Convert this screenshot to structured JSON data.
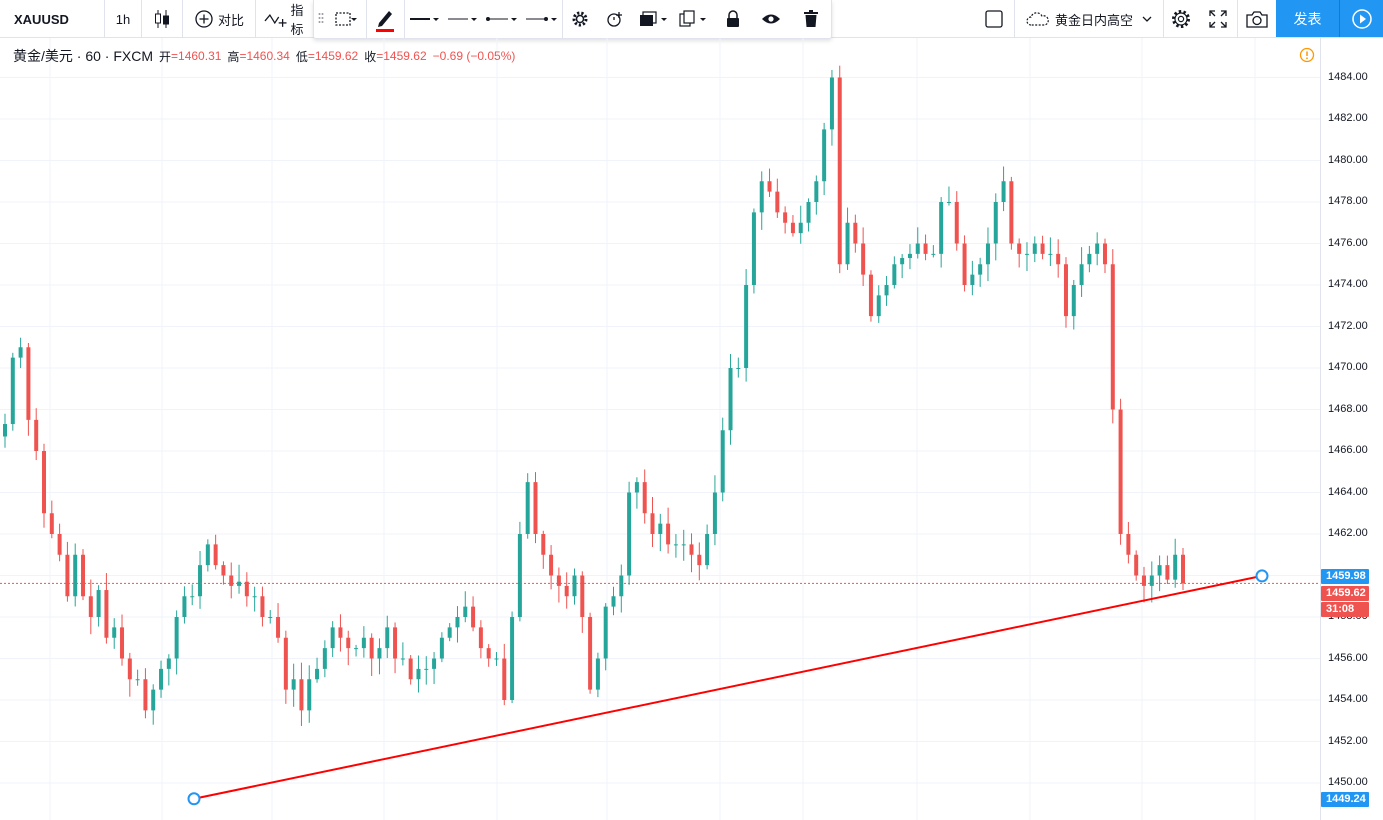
{
  "topbar": {
    "symbol": "XAUUSD",
    "interval": "1h",
    "compare_label": "对比",
    "indicators_label": "指标",
    "layout_name": "黄金日内高空",
    "publish_label": "发表"
  },
  "legend": {
    "title": "黄金/美元 · 60 · FXCM",
    "open_label": "开",
    "open": "=1460.31",
    "high_label": "高",
    "high": "=1460.34",
    "low_label": "低",
    "low": "=1459.62",
    "close_label": "收",
    "close": "=1459.62",
    "change": "−0.69 (−0.05%)"
  },
  "price_axis": {
    "ticks": [
      "1484.00",
      "1482.00",
      "1480.00",
      "1478.00",
      "1476.00",
      "1474.00",
      "1472.00",
      "1470.00",
      "1468.00",
      "1466.00",
      "1464.00",
      "1462.00",
      "1458.00",
      "1456.00",
      "1454.00",
      "1452.00",
      "1450.00"
    ]
  },
  "price_tags": {
    "trend_end": "1459.98",
    "last_price": "1459.62",
    "countdown": "31:08",
    "trend_start": "1449.24"
  },
  "colors": {
    "up": "#26a69a",
    "down": "#ef5350",
    "trend_line": "#ff0000",
    "accent": "#2196f3"
  },
  "chart_data": {
    "type": "candlestick",
    "symbol": "XAUUSD",
    "interval": "60",
    "source": "FXCM",
    "ylim": [
      1449,
      1485
    ],
    "last_price": 1459.62,
    "trend_line": {
      "start": 1449.24,
      "end": 1459.98
    },
    "closes": [
      1467.3,
      1470.5,
      1471,
      1467.5,
      1466,
      1463,
      1462,
      1461,
      1459,
      1461,
      1459,
      1458,
      1459.3,
      1457,
      1457.5,
      1456,
      1455,
      1455,
      1453.5,
      1454.5,
      1455.5,
      1456,
      1458,
      1459,
      1459,
      1460.5,
      1461.5,
      1460.5,
      1460,
      1459.5,
      1459.7,
      1459,
      1459,
      1458,
      1458,
      1457,
      1454.5,
      1455,
      1453.5,
      1455,
      1455.5,
      1456.5,
      1457.5,
      1457,
      1456.5,
      1456.5,
      1457,
      1456,
      1456.5,
      1457.5,
      1456,
      1456,
      1455,
      1455.5,
      1455.5,
      1456,
      1457,
      1457.5,
      1458,
      1458.5,
      1457.5,
      1456.5,
      1456,
      1456,
      1454,
      1458,
      1462,
      1464.5,
      1462,
      1461,
      1460,
      1459.5,
      1459,
      1460,
      1458,
      1454.5,
      1456,
      1458.5,
      1459,
      1460,
      1464,
      1464.5,
      1463,
      1462,
      1462.5,
      1461.5,
      1461.5,
      1461.5,
      1461,
      1460.5,
      1462,
      1464,
      1467,
      1470,
      1470,
      1474,
      1477.5,
      1479,
      1478.5,
      1477.5,
      1477,
      1476.5,
      1477,
      1478,
      1479,
      1481.5,
      1484,
      1475,
      1477,
      1476,
      1474.5,
      1472.5,
      1473.5,
      1474,
      1475,
      1475.3,
      1475.5,
      1476,
      1475.5,
      1475.5,
      1478,
      1478,
      1476,
      1474,
      1474.5,
      1475,
      1476,
      1478,
      1479,
      1476,
      1475.5,
      1475.5,
      1476,
      1475.5,
      1475.5,
      1475,
      1472.5,
      1474,
      1475,
      1475.5,
      1476,
      1475,
      1468,
      1462,
      1461,
      1460,
      1459.5,
      1460,
      1460.5,
      1459.8,
      1461,
      1459.62
    ],
    "xlabel": "",
    "ylabel": ""
  }
}
